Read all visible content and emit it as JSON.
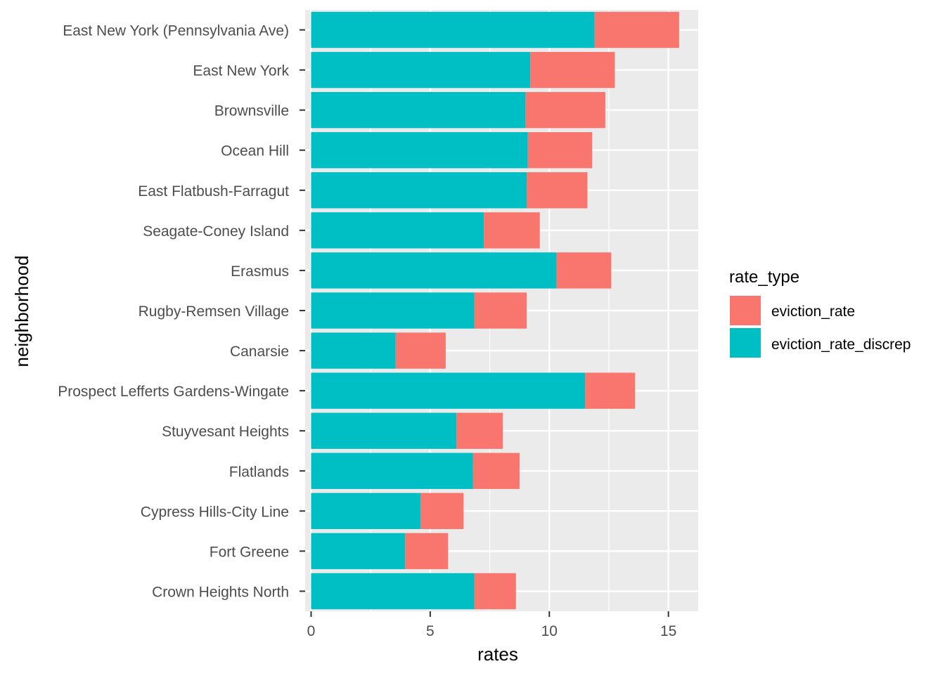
{
  "chart_data": {
    "type": "bar",
    "orientation": "horizontal",
    "stacked": true,
    "xlabel": "rates",
    "ylabel": "neighborhood",
    "xlim": [
      -0.25,
      16.25
    ],
    "xticks": [
      0,
      5,
      10,
      15
    ],
    "grid": true,
    "legend_position": "right",
    "legend": {
      "title": "rate_type",
      "entries": [
        {
          "label": "eviction_rate",
          "color": "#F8766D"
        },
        {
          "label": "eviction_rate_discrep",
          "color": "#00BFC4"
        }
      ]
    },
    "categories": [
      "East New York (Pennsylvania Ave)",
      "East New York",
      "Brownsville",
      "Ocean Hill",
      "East Flatbush-Farragut",
      "Seagate-Coney Island",
      "Erasmus",
      "Rugby-Remsen Village",
      "Canarsie",
      "Prospect Lefferts Gardens-Wingate",
      "Stuyvesant Heights",
      "Flatlands",
      "Cypress Hills-City Line",
      "Fort Greene",
      "Crown Heights North"
    ],
    "series": [
      {
        "name": "eviction_rate_discrep",
        "color": "#00BFC4",
        "values": [
          11.9,
          9.2,
          9.0,
          9.1,
          9.05,
          7.25,
          10.3,
          6.85,
          3.55,
          11.5,
          6.1,
          6.8,
          4.6,
          3.95,
          6.85
        ]
      },
      {
        "name": "eviction_rate",
        "color": "#F8766D",
        "values": [
          3.55,
          3.55,
          3.35,
          2.7,
          2.55,
          2.35,
          2.3,
          2.2,
          2.1,
          2.1,
          1.95,
          1.95,
          1.8,
          1.8,
          1.75
        ]
      }
    ],
    "colors": {
      "panel_background": "#EBEBEB",
      "grid_major": "#FFFFFF",
      "tick_label": "#4D4D4D",
      "axis_title": "#000000"
    }
  }
}
